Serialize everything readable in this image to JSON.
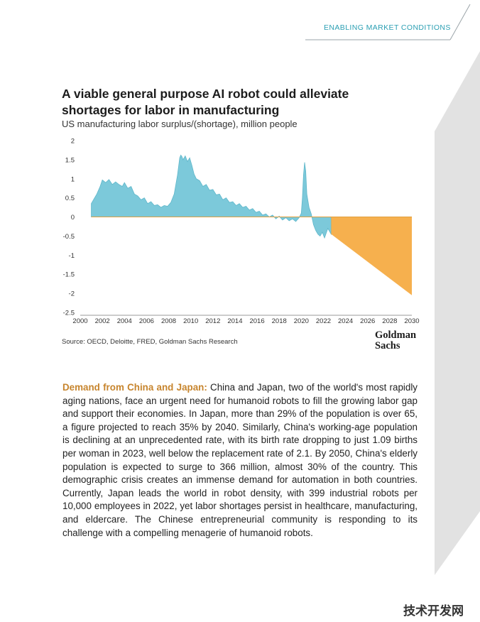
{
  "header": {
    "section_label": "ENABLING MARKET CONDITIONS"
  },
  "chart_title": "A viable general purpose AI robot could alleviate shortages for labor in manufacturing",
  "chart_subtitle": "US manufacturing labor surplus/(shortage), million people",
  "chart_data": {
    "type": "area",
    "title": "A viable general purpose AI robot could alleviate shortages for labor in manufacturing",
    "subtitle": "US manufacturing labor surplus/(shortage), million people",
    "xlabel": "",
    "ylabel": "",
    "xlim": [
      2000,
      2030
    ],
    "ylim": [
      -2.5,
      2
    ],
    "x_ticks": [
      "2000",
      "2002",
      "2004",
      "2006",
      "2008",
      "2010",
      "2012",
      "2014",
      "2016",
      "2018",
      "2020",
      "2022",
      "2024",
      "2026",
      "2028",
      "2030"
    ],
    "y_ticks": [
      "2",
      "1.5",
      "1",
      "0.5",
      "0",
      "-0.5",
      "-1",
      "-1.5",
      "-2",
      "-2.5"
    ],
    "grid": false,
    "colors": {
      "historical": "#7cc9da",
      "projection": "#f6b04e"
    },
    "series": [
      {
        "x": [
          2001.0,
          2001.2,
          2001.5,
          2001.8,
          2002.0,
          2002.3,
          2002.6,
          2002.9,
          2003.2,
          2003.5,
          2003.8,
          2004.0,
          2004.3,
          2004.6,
          2004.9,
          2005.2,
          2005.5,
          2005.8,
          2006.1,
          2006.4,
          2006.7,
          2007.0,
          2007.3,
          2007.6,
          2007.9,
          2008.2,
          2008.5,
          2008.8,
          2009.0,
          2009.1,
          2009.2,
          2009.3,
          2009.5,
          2009.7,
          2009.9,
          2010.1,
          2010.3,
          2010.5,
          2010.8,
          2011.1,
          2011.4,
          2011.7,
          2012.0,
          2012.3,
          2012.6,
          2012.9,
          2013.2,
          2013.5,
          2013.8,
          2014.1,
          2014.4,
          2014.7,
          2015.0,
          2015.3,
          2015.6,
          2015.9,
          2016.2,
          2016.5,
          2016.8,
          2017.1,
          2017.4,
          2017.7,
          2018.0,
          2018.3,
          2018.6,
          2018.9,
          2019.2,
          2019.5,
          2019.8,
          2020.0,
          2020.1,
          2020.2,
          2020.3,
          2020.4,
          2020.5,
          2020.7,
          2020.9,
          2021.1,
          2021.3,
          2021.5,
          2021.7,
          2021.9,
          2022.1,
          2022.4,
          2022.7
        ],
        "values": [
          0.35,
          0.45,
          0.6,
          0.8,
          0.97,
          0.9,
          0.98,
          0.85,
          0.92,
          0.85,
          0.8,
          0.9,
          0.75,
          0.8,
          0.6,
          0.55,
          0.45,
          0.5,
          0.35,
          0.4,
          0.3,
          0.32,
          0.25,
          0.3,
          0.28,
          0.38,
          0.6,
          1.1,
          1.55,
          1.62,
          1.58,
          1.5,
          1.6,
          1.45,
          1.55,
          1.35,
          1.12,
          1.0,
          0.95,
          0.8,
          0.85,
          0.7,
          0.72,
          0.58,
          0.6,
          0.45,
          0.5,
          0.38,
          0.4,
          0.3,
          0.35,
          0.25,
          0.28,
          0.18,
          0.22,
          0.12,
          0.15,
          0.05,
          0.08,
          0.0,
          0.05,
          -0.05,
          0.02,
          -0.08,
          -0.02,
          -0.1,
          -0.05,
          -0.12,
          -0.02,
          0.1,
          0.5,
          1.1,
          1.43,
          1.2,
          0.6,
          0.25,
          0.08,
          -0.2,
          -0.35,
          -0.45,
          -0.5,
          -0.4,
          -0.55,
          -0.3,
          -0.45
        ]
      },
      {
        "x": [
          2022.7,
          2030
        ],
        "values": [
          -0.45,
          -2.05
        ]
      }
    ]
  },
  "footer": {
    "source": "Source: OECD, Deloitte, FRED, Goldman Sachs Research",
    "logo_line1": "Goldman",
    "logo_line2": "Sachs"
  },
  "body": {
    "lead": "Demand from China and Japan:",
    "text": " China and Japan, two of the world's most rapidly aging nations, face an urgent need for humanoid robots to fill the growing labor gap and support their economies. In Japan, more than 29% of the population is over 65, a figure projected to reach 35% by 2040. Similarly, China's working-age population is declining at an unprecedented rate, with its birth rate dropping to just 1.09 births per woman in 2023, well below the replacement rate of 2.1. By 2050, China's elderly population is expected to surge to 366 million, almost 30% of the country. This demographic crisis creates an immense demand for automation in both countries. Currently, Japan leads the world in robot density, with 399 industrial robots per 10,000 employees in 2022, yet labor shortages persist in healthcare, manufacturing, and eldercare. The Chinese entrepreneurial community is responding to its challenge with a compelling menagerie of humanoid robots."
  },
  "watermark": "技术开发网"
}
